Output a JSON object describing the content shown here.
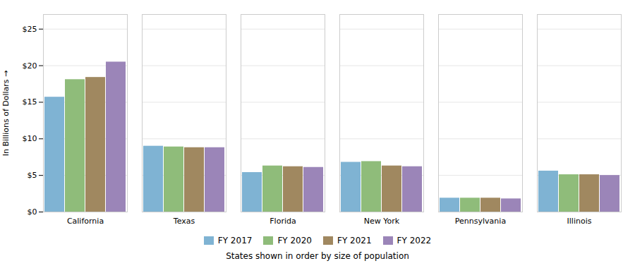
{
  "chart_data": {
    "type": "bar",
    "categories": [
      "California",
      "Texas",
      "Florida",
      "New York",
      "Pennsylvania",
      "Illinois"
    ],
    "series": [
      {
        "name": "FY 2017",
        "color": "#7fb3d3",
        "values": [
          15.7,
          9.0,
          5.4,
          6.8,
          1.9,
          5.6
        ]
      },
      {
        "name": "FY 2020",
        "color": "#8fbc7a",
        "values": [
          18.1,
          8.9,
          6.3,
          6.9,
          1.9,
          5.1
        ]
      },
      {
        "name": "FY 2021",
        "color": "#a08860",
        "values": [
          18.4,
          8.8,
          6.2,
          6.3,
          1.9,
          5.1
        ]
      },
      {
        "name": "FY 2022",
        "color": "#9b85b8",
        "values": [
          20.5,
          8.8,
          6.1,
          6.2,
          1.8,
          5.0
        ]
      }
    ],
    "ylabel": "In Billions of Dollars",
    "xlabel": "States shown in order by size of population",
    "ylim": [
      0,
      27
    ],
    "yticks": [
      {
        "value": 0,
        "label": "$0"
      },
      {
        "value": 5,
        "label": "$5"
      },
      {
        "value": 10,
        "label": "$10"
      },
      {
        "value": 15,
        "label": "$15"
      },
      {
        "value": 20,
        "label": "$20"
      },
      {
        "value": 25,
        "label": "$25"
      }
    ],
    "grid": true,
    "legend": "bottom"
  }
}
